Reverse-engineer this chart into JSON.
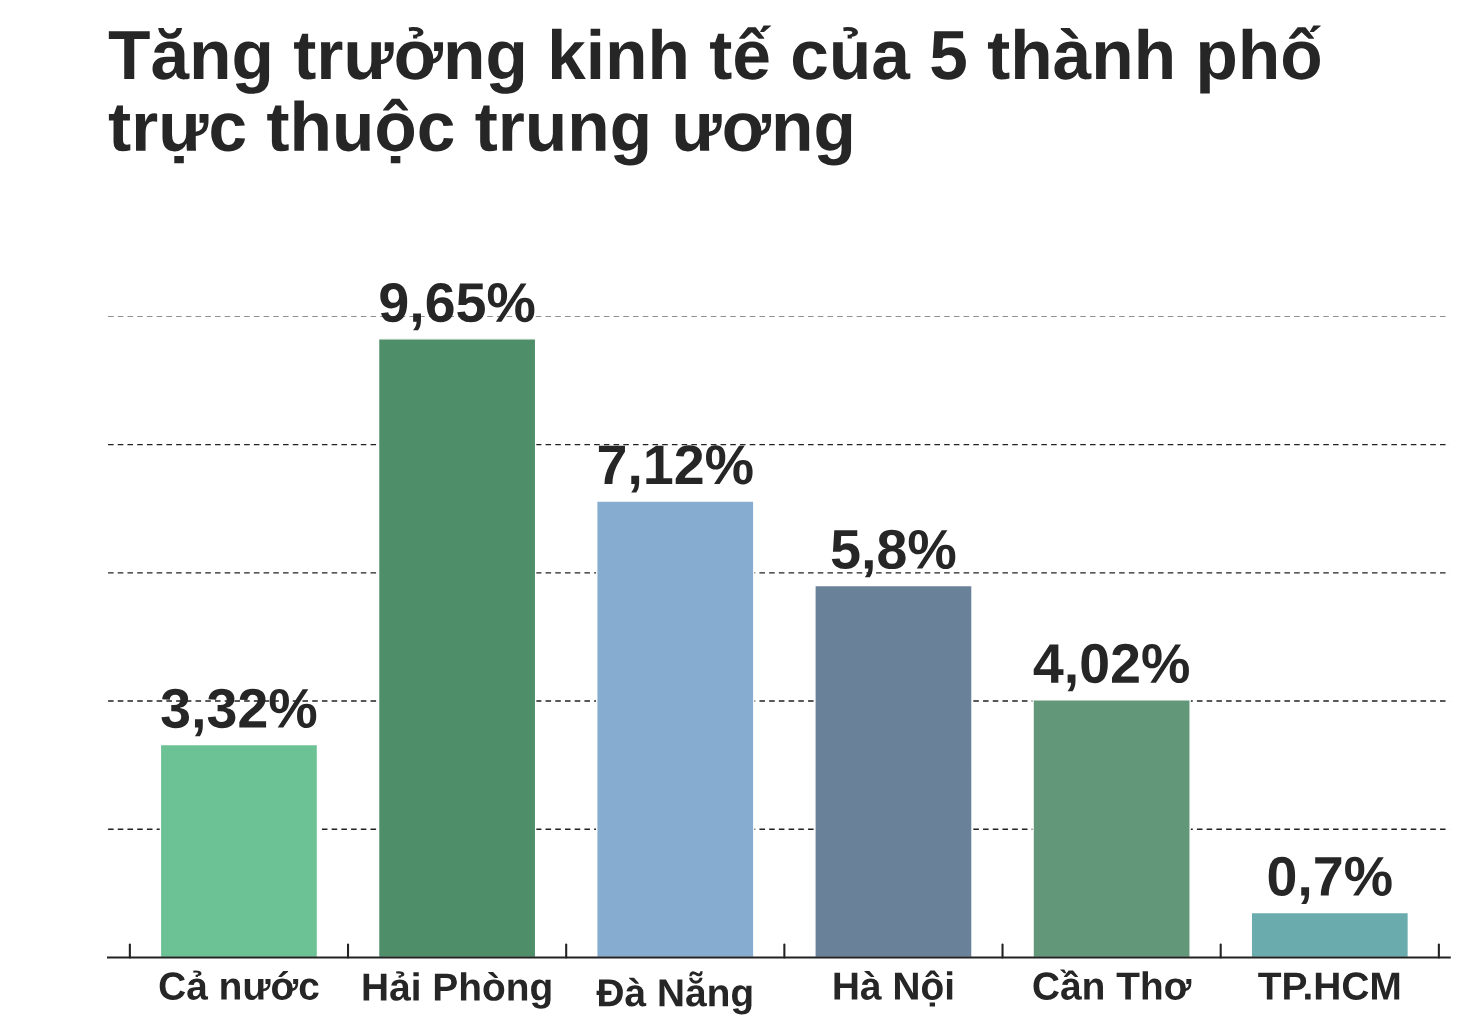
{
  "chart_data": {
    "type": "bar",
    "title": "Tăng trưởng kinh tế của 5 thành phố\ntrực thuộc trung ương",
    "categories": [
      "Cả nước",
      "Hải Phòng",
      "Đà Nẵng",
      "Hà Nội",
      "Cần Thơ",
      "TP.HCM"
    ],
    "values": [
      3.32,
      9.65,
      7.12,
      5.8,
      4.02,
      0.7
    ],
    "colors": [
      "#6cc295",
      "#4e8f6a",
      "#86adcf",
      "#6a819a",
      "#629779",
      "#6aacad"
    ],
    "value_labels": [
      "3,32%",
      "9,65%",
      "7,12%",
      "5,8%",
      "4,02%",
      "0,7%"
    ],
    "ylim": [
      0,
      10
    ],
    "yticks": [
      {
        "value": 2,
        "label": null
      },
      {
        "value": 4,
        "label": null
      },
      {
        "value": 6,
        "label": null
      },
      {
        "value": 8,
        "label": null
      },
      {
        "value": 10,
        "label": null
      }
    ],
    "grid": "y",
    "tick_labels": "x",
    "legend": false
  }
}
